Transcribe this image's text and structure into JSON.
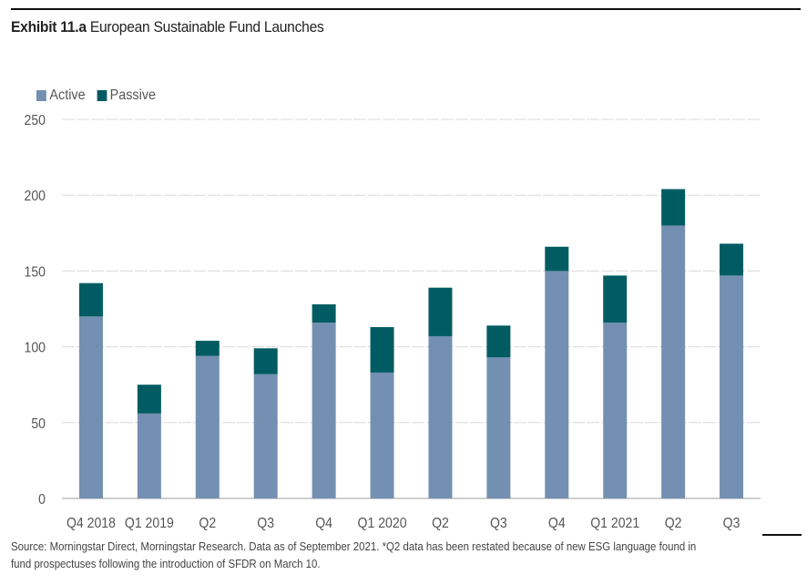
{
  "exhibit_label": "Exhibit 11.a",
  "title": "European Sustainable Fund Launches",
  "legend": [
    {
      "name": "Active",
      "color": "#7390b2"
    },
    {
      "name": "Passive",
      "color": "#005c62"
    }
  ],
  "source_line1": "Source: Morningstar Direct, Morningstar Research. Data as of September 2021. *Q2 data has been restated because of new ESG language found in",
  "source_line2": "fund prospectuses following the introduction of SFDR on March 10.",
  "chart_data": {
    "type": "bar",
    "stacked": true,
    "title": "European Sustainable Fund Launches",
    "xlabel": "",
    "ylabel": "",
    "ylim": [
      0,
      250
    ],
    "yticks": [
      0,
      50,
      100,
      150,
      200,
      250
    ],
    "grid": true,
    "legend_position": "top-left",
    "categories": [
      "Q4 2018",
      "Q1 2019",
      "Q2",
      "Q3",
      "Q4",
      "Q1 2020",
      "Q2",
      "Q3",
      "Q4",
      "Q1 2021",
      "Q2",
      "Q3"
    ],
    "series": [
      {
        "name": "Active",
        "color": "#7390b2",
        "values": [
          120,
          56,
          94,
          82,
          116,
          83,
          107,
          93,
          150,
          116,
          180,
          147
        ]
      },
      {
        "name": "Passive",
        "color": "#005c62",
        "values": [
          22,
          19,
          10,
          17,
          12,
          30,
          32,
          21,
          16,
          31,
          24,
          21
        ]
      }
    ]
  }
}
